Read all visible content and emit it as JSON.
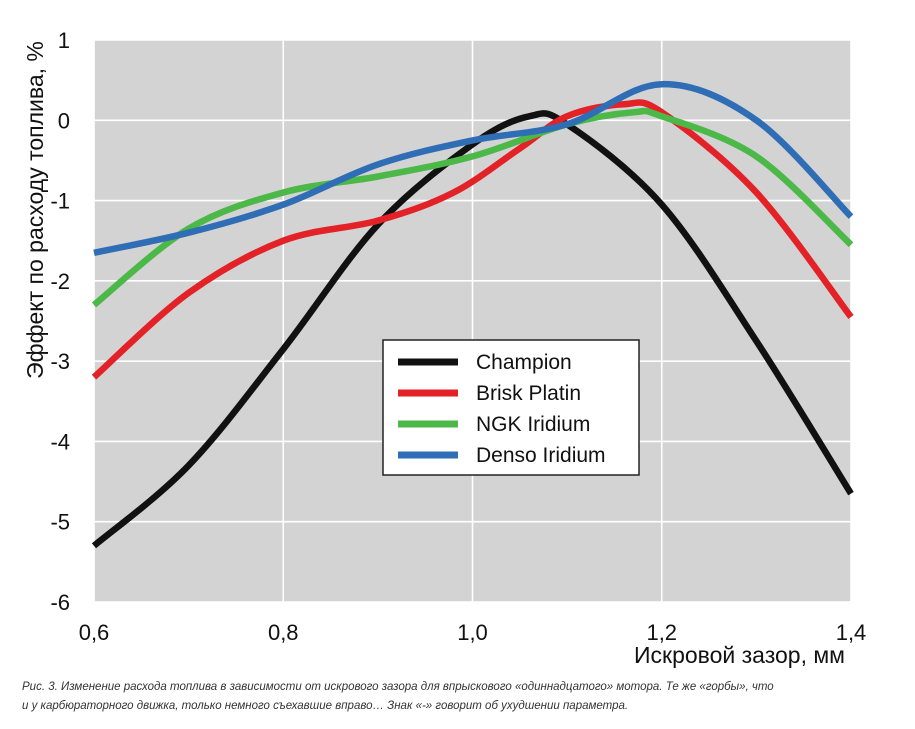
{
  "chart_data": {
    "type": "line",
    "title": "",
    "xlabel": "Искровой зазор, мм",
    "ylabel": "Эффект по расходу топлива, %",
    "xlim": [
      0.6,
      1.4
    ],
    "ylim": [
      -6,
      1
    ],
    "x_ticks": [
      {
        "value": 0.6,
        "label": "0,6"
      },
      {
        "value": 0.8,
        "label": "0,8"
      },
      {
        "value": 1.0,
        "label": "1,0"
      },
      {
        "value": 1.2,
        "label": "1,2"
      },
      {
        "value": 1.4,
        "label": "1,4"
      }
    ],
    "y_ticks": [
      {
        "value": 1,
        "label": "1"
      },
      {
        "value": 0,
        "label": "0"
      },
      {
        "value": -1,
        "label": "-1"
      },
      {
        "value": -2,
        "label": "-2"
      },
      {
        "value": -3,
        "label": "-3"
      },
      {
        "value": -4,
        "label": "-4"
      },
      {
        "value": -5,
        "label": "-5"
      },
      {
        "value": -6,
        "label": "-6"
      }
    ],
    "grid": true,
    "legend_position": "center",
    "series": [
      {
        "name": "Champion",
        "color": "#111111",
        "points": [
          [
            0.6,
            -5.3
          ],
          [
            0.7,
            -4.3
          ],
          [
            0.8,
            -2.85
          ],
          [
            0.9,
            -1.3
          ],
          [
            1.0,
            -0.3
          ],
          [
            1.06,
            0.05
          ],
          [
            1.1,
            -0.05
          ],
          [
            1.2,
            -1.05
          ],
          [
            1.3,
            -2.75
          ],
          [
            1.4,
            -4.65
          ]
        ]
      },
      {
        "name": "Brisk Platin",
        "color": "#e32228",
        "points": [
          [
            0.6,
            -3.2
          ],
          [
            0.7,
            -2.15
          ],
          [
            0.8,
            -1.5
          ],
          [
            0.9,
            -1.25
          ],
          [
            0.98,
            -0.9
          ],
          [
            1.05,
            -0.35
          ],
          [
            1.1,
            0.05
          ],
          [
            1.16,
            0.2
          ],
          [
            1.2,
            0.1
          ],
          [
            1.3,
            -0.9
          ],
          [
            1.4,
            -2.45
          ]
        ]
      },
      {
        "name": "NGK Iridium",
        "color": "#4cb848",
        "points": [
          [
            0.6,
            -2.3
          ],
          [
            0.7,
            -1.35
          ],
          [
            0.8,
            -0.9
          ],
          [
            0.9,
            -0.7
          ],
          [
            1.0,
            -0.45
          ],
          [
            1.1,
            -0.05
          ],
          [
            1.17,
            0.1
          ],
          [
            1.2,
            0.05
          ],
          [
            1.3,
            -0.45
          ],
          [
            1.4,
            -1.55
          ]
        ]
      },
      {
        "name": "Denso Iridium",
        "color": "#2f6db5",
        "points": [
          [
            0.6,
            -1.65
          ],
          [
            0.7,
            -1.4
          ],
          [
            0.8,
            -1.05
          ],
          [
            0.9,
            -0.55
          ],
          [
            1.0,
            -0.25
          ],
          [
            1.1,
            -0.05
          ],
          [
            1.2,
            0.45
          ],
          [
            1.3,
            0.0
          ],
          [
            1.4,
            -1.2
          ]
        ]
      }
    ]
  },
  "caption": {
    "line1": "Рис. 3. Изменение расхода топлива в зависимости от искрового зазора для впрыскового «одиннадцатого» мотора. Те же «горбы», что",
    "line2": "и у карбюраторного движка, только немного съехавшие вправо… Знак «-» говорит об ухудшении параметра."
  }
}
